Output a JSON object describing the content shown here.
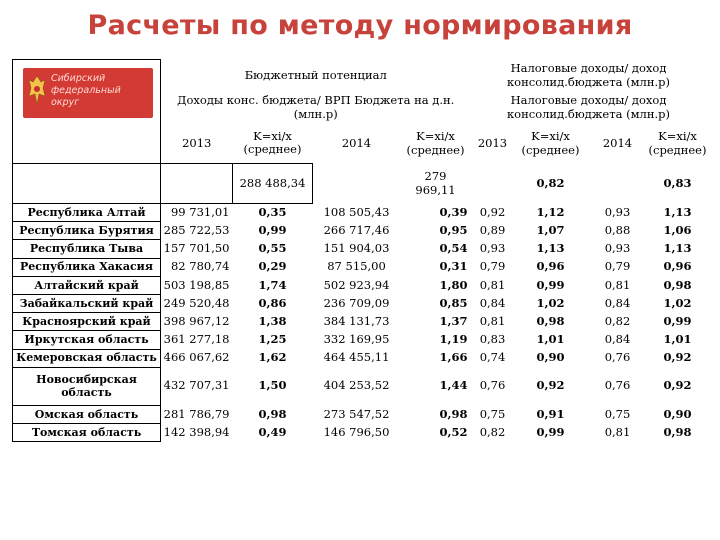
{
  "title": "Расчеты по методу нормирования",
  "logo": {
    "line1": "Сибирский",
    "line2": "федеральный",
    "line3": "округ"
  },
  "header": {
    "budget_potential": "Бюджетный потенциал",
    "income_vrp": "Доходы конс. бюджета/ ВРП",
    "budget_per_capita": "Бюджета на д.н. (млн.р)",
    "tax_income_share": "Налоговые доходы/ доход консолид.бюджета (млн.р)",
    "tax_income_share2": "Налоговые доходы/ доход консолид.бюджета (млн.р)",
    "year_2013": "2013",
    "year_2014": "2014",
    "k_formula": "K=xi/x",
    "k_avg": "(среднее)",
    "avg_2013": "288 488,34",
    "avg_2014_a": "279",
    "avg_2014_b": "969,11",
    "avg_k_2013": "0,82",
    "avg_k_2014": "0,83"
  },
  "rows": [
    {
      "name": "Республика Алтай",
      "v2013": "99 731,01",
      "k2013": "0,35",
      "v2014": "108 505,43",
      "k2014": "0,39",
      "t2013": "0,92",
      "tk2013": "1,12",
      "t2014": "0,93",
      "tk2014": "1,13"
    },
    {
      "name": "Республика Бурятия",
      "v2013": "285 722,53",
      "k2013": "0,99",
      "v2014": "266 717,46",
      "k2014": "0,95",
      "t2013": "0,89",
      "tk2013": "1,07",
      "t2014": "0,88",
      "tk2014": "1,06"
    },
    {
      "name": "Республика Тыва",
      "v2013": "157 701,50",
      "k2013": "0,55",
      "v2014": "151 904,03",
      "k2014": "0,54",
      "t2013": "0,93",
      "tk2013": "1,13",
      "t2014": "0,93",
      "tk2014": "1,13"
    },
    {
      "name": "Республика Хакасия",
      "v2013": "82 780,74",
      "k2013": "0,29",
      "v2014": "87 515,00",
      "k2014": "0,31",
      "t2013": "0,79",
      "tk2013": "0,96",
      "t2014": "0,79",
      "tk2014": "0,96"
    },
    {
      "name": "Алтайский край",
      "v2013": "503 198,85",
      "k2013": "1,74",
      "v2014": "502 923,94",
      "k2014": "1,80",
      "t2013": "0,81",
      "tk2013": "0,99",
      "t2014": "0,81",
      "tk2014": "0,98"
    },
    {
      "name": "Забайкальский край",
      "v2013": "249 520,48",
      "k2013": "0,86",
      "v2014": "236 709,09",
      "k2014": "0,85",
      "t2013": "0,84",
      "tk2013": "1,02",
      "t2014": "0,84",
      "tk2014": "1,02"
    },
    {
      "name": "Красноярский край",
      "v2013": "398 967,12",
      "k2013": "1,38",
      "v2014": "384 131,73",
      "k2014": "1,37",
      "t2013": "0,81",
      "tk2013": "0,98",
      "t2014": "0,82",
      "tk2014": "0,99"
    },
    {
      "name": "Иркутская область",
      "v2013": "361 277,18",
      "k2013": "1,25",
      "v2014": "332 169,95",
      "k2014": "1,19",
      "t2013": "0,83",
      "tk2013": "1,01",
      "t2014": "0,84",
      "tk2014": "1,01"
    },
    {
      "name": "Кемеровская область",
      "v2013": "466 067,62",
      "k2013": "1,62",
      "v2014": "464 455,11",
      "k2014": "1,66",
      "t2013": "0,74",
      "tk2013": "0,90",
      "t2014": "0,76",
      "tk2014": "0,92"
    },
    {
      "name": "Новосибирская область",
      "v2013": "432 707,31",
      "k2013": "1,50",
      "v2014": "404 253,52",
      "k2014": "1,44",
      "t2013": "0,76",
      "tk2013": "0,92",
      "t2014": "0,76",
      "tk2014": "0,92"
    },
    {
      "name": "Омская область",
      "v2013": "281 786,79",
      "k2013": "0,98",
      "v2014": "273 547,52",
      "k2014": "0,98",
      "t2013": "0,75",
      "tk2013": "0,91",
      "t2014": "0,75",
      "tk2014": "0,90"
    },
    {
      "name": "Томская область",
      "v2013": "142 398,94",
      "k2013": "0,49",
      "v2014": "146 796,50",
      "k2014": "0,52",
      "t2013": "0,82",
      "tk2013": "0,99",
      "t2014": "0,81",
      "tk2014": "0,98"
    }
  ]
}
